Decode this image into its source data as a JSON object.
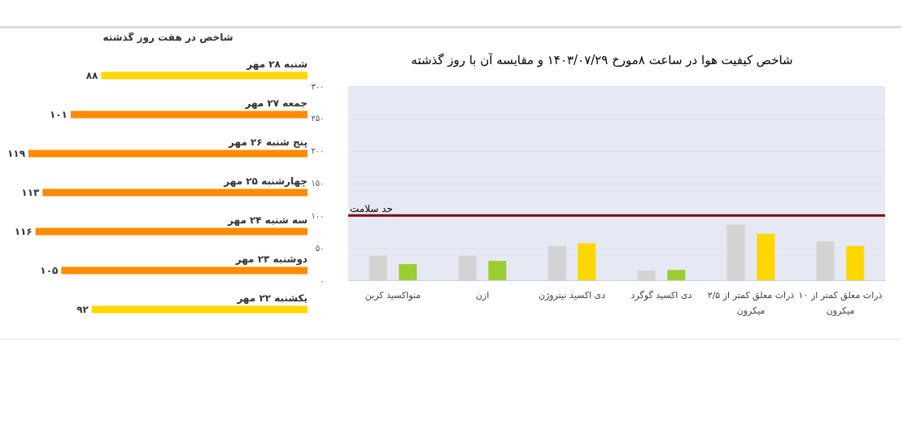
{
  "chart_data": [
    {
      "type": "bar",
      "orientation": "horizontal",
      "title": "شاخص در هفت روز گذشته",
      "categories": [
        "شنبه ۲۸ مهر",
        "جمعه ۲۷ مهر",
        "پنج شنبه ۲۶ مهر",
        "چهارشنبه ۲۵ مهر",
        "سه شنبه ۲۴ مهر",
        "دوشنبه ۲۳ مهر",
        "یکشنبه ۲۲ مهر"
      ],
      "values": [
        88,
        101,
        119,
        113,
        116,
        105,
        92
      ],
      "value_labels": [
        "۸۸",
        "۱۰۱",
        "۱۱۹",
        "۱۱۳",
        "۱۱۶",
        "۱۰۵",
        "۹۲"
      ],
      "colors": [
        "#ffd700",
        "#ff8c00",
        "#ff8c00",
        "#ff8c00",
        "#ff8c00",
        "#ff8c00",
        "#ffd700"
      ]
    },
    {
      "type": "bar",
      "title": "شاخص کیفیت هوا در ساعت ۸مورخ ۱۴۰۳/۰۷/۲۹ و مقایسه آن با روز گذشته",
      "categories": [
        "منواکسید کربن",
        "ازن",
        "دی اکسید نیتروژن",
        "دی اکسید گوگرد",
        "ذرات معلق کمتر از ۲/۵ میکرون",
        "ذرات معلق کمتر از ۱۰ میکرون"
      ],
      "series": [
        {
          "color": "#d3d3d3",
          "values": [
            38,
            38,
            53,
            15,
            86,
            60
          ]
        },
        {
          "colors": [
            "#9acd32",
            "#9acd32",
            "#ffd700",
            "#9acd32",
            "#ffd700",
            "#ffd700"
          ],
          "values": [
            25,
            30,
            57,
            16,
            72,
            53
          ]
        }
      ],
      "ylim": [
        0,
        300
      ],
      "yticks": [
        {
          "value": 0,
          "label": "۰"
        },
        {
          "value": 50,
          "label": "۵۰"
        },
        {
          "value": 100,
          "label": "۱۰۰"
        },
        {
          "value": 150,
          "label": "۱۵۰"
        },
        {
          "value": 200,
          "label": "۲۰۰"
        },
        {
          "value": 250,
          "label": "۲۵۰"
        },
        {
          "value": 300,
          "label": "۳۰۰"
        }
      ],
      "grid": "y",
      "ref_lines": [
        {
          "axis": "y",
          "value": 100,
          "label": "حد سلامت",
          "color": "#800000"
        }
      ]
    }
  ]
}
